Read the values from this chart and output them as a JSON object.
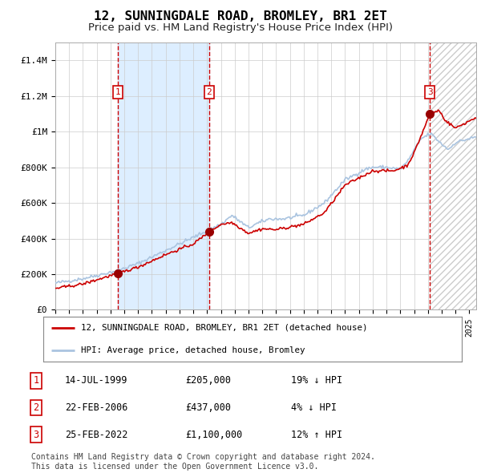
{
  "title": "12, SUNNINGDALE ROAD, BROMLEY, BR1 2ET",
  "subtitle": "Price paid vs. HM Land Registry's House Price Index (HPI)",
  "title_fontsize": 11.5,
  "subtitle_fontsize": 9.5,
  "ylim": [
    0,
    1500000
  ],
  "yticks": [
    0,
    200000,
    400000,
    600000,
    800000,
    1000000,
    1200000,
    1400000
  ],
  "ytick_labels": [
    "£0",
    "£200K",
    "£400K",
    "£600K",
    "£800K",
    "£1M",
    "£1.2M",
    "£1.4M"
  ],
  "hpi_color": "#aac4e0",
  "price_color": "#cc0000",
  "marker_color": "#990000",
  "grid_color": "#cccccc",
  "bg_color": "#ffffff",
  "shade_color": "#ddeeff",
  "hatch_color": "#cccccc",
  "purchase_dates": [
    1999.54,
    2006.15,
    2022.15
  ],
  "purchase_prices": [
    205000,
    437000,
    1100000
  ],
  "purchase_labels": [
    "1",
    "2",
    "3"
  ],
  "legend_entries": [
    "12, SUNNINGDALE ROAD, BROMLEY, BR1 2ET (detached house)",
    "HPI: Average price, detached house, Bromley"
  ],
  "table_rows": [
    [
      "1",
      "14-JUL-1999",
      "£205,000",
      "19% ↓ HPI"
    ],
    [
      "2",
      "22-FEB-2006",
      "£437,000",
      "4% ↓ HPI"
    ],
    [
      "3",
      "25-FEB-2022",
      "£1,100,000",
      "12% ↑ HPI"
    ]
  ],
  "footnote": "Contains HM Land Registry data © Crown copyright and database right 2024.\nThis data is licensed under the Open Government Licence v3.0.",
  "xstart": 1995.0,
  "xend": 2025.5
}
